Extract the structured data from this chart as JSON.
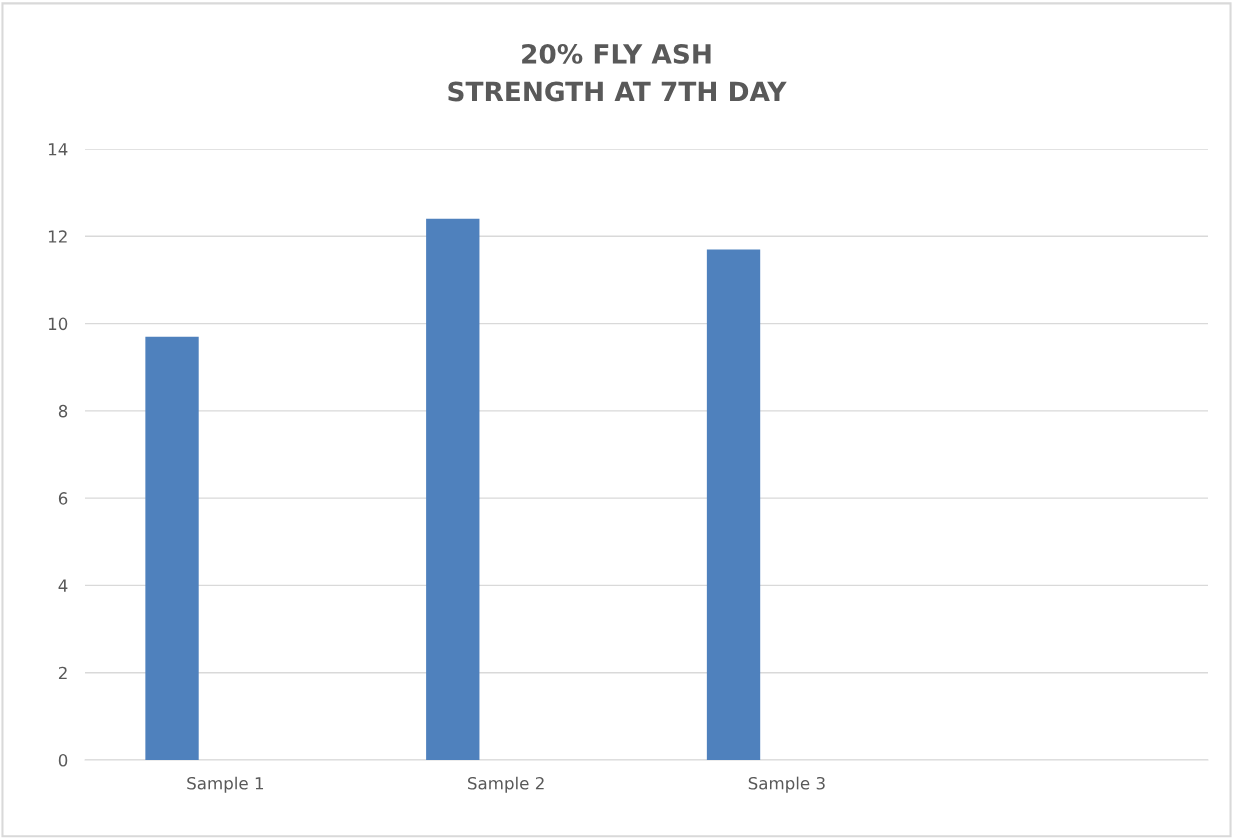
{
  "chart_data": {
    "type": "bar",
    "title": "20% FLY ASH\nSTRENGTH AT 7TH DAY",
    "categories": [
      "Sample 1",
      "Sample 2",
      "Sample 3",
      null
    ],
    "values": [
      9.7,
      12.4,
      11.7,
      null
    ],
    "color": "#4f81bd",
    "ylim": [
      0,
      14
    ],
    "yticks": [
      0,
      2,
      4,
      6,
      8,
      10,
      12,
      14
    ],
    "grid": "y"
  }
}
